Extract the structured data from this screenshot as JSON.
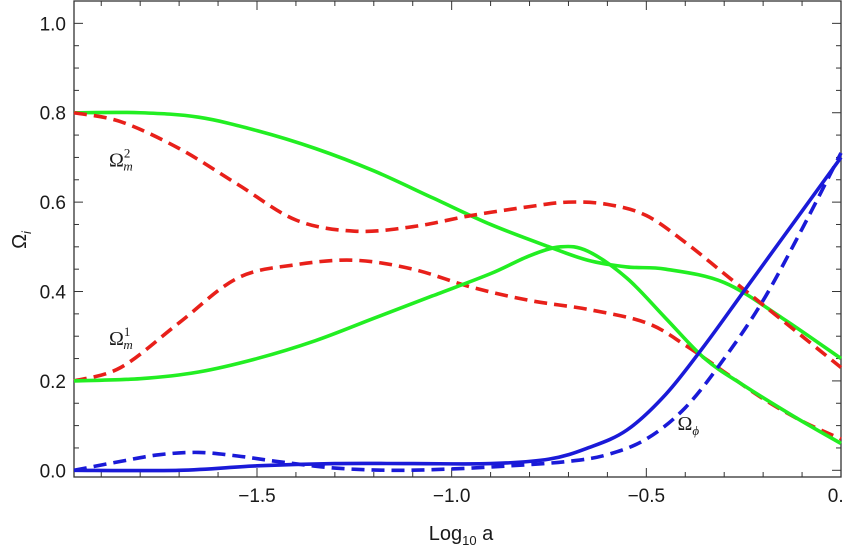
{
  "chart_data": {
    "type": "line",
    "xlabel": "Log",
    "xlabel_sub": "10",
    "xlabel_tail": " a",
    "ylabel": "Ω",
    "ylabel_sub": "i",
    "xlim": [
      -1.97,
      0.0
    ],
    "ylim": [
      -0.015,
      1.05
    ],
    "x_ticks": [
      -1.5,
      -1.0,
      -0.5,
      0.0
    ],
    "x_tick_labels": [
      "−1.5",
      "−1.0",
      "−0.5",
      "0.0"
    ],
    "y_ticks": [
      0.0,
      0.2,
      0.4,
      0.6,
      0.8,
      1.0
    ],
    "y_tick_labels": [
      "0.0",
      "0.2",
      "0.4",
      "0.6",
      "0.8",
      "1.0"
    ],
    "grid": false,
    "colors": {
      "green": "#22ee22",
      "red": "#e8201a",
      "blue": "#1a1ad8"
    },
    "series": [
      {
        "color": "green",
        "dash": false,
        "x": [
          -1.97,
          -1.8,
          -1.65,
          -1.5,
          -1.35,
          -1.2,
          -1.05,
          -0.9,
          -0.75,
          -0.65,
          -0.55,
          -0.45,
          -0.3,
          -0.15,
          0.0
        ],
        "y": [
          0.8,
          0.8,
          0.79,
          0.76,
          0.72,
          0.67,
          0.61,
          0.55,
          0.5,
          0.47,
          0.455,
          0.45,
          0.42,
          0.34,
          0.25
        ]
      },
      {
        "color": "red",
        "dash": true,
        "x": [
          -1.97,
          -1.85,
          -1.7,
          -1.55,
          -1.4,
          -1.25,
          -1.1,
          -0.95,
          -0.8,
          -0.7,
          -0.6,
          -0.5,
          -0.4,
          -0.3,
          -0.2,
          -0.1,
          0.0
        ],
        "y": [
          0.8,
          0.78,
          0.72,
          0.64,
          0.56,
          0.535,
          0.545,
          0.57,
          0.59,
          0.6,
          0.595,
          0.57,
          0.51,
          0.44,
          0.37,
          0.3,
          0.23
        ]
      },
      {
        "color": "red",
        "dash": true,
        "x": [
          -1.97,
          -1.85,
          -1.7,
          -1.55,
          -1.4,
          -1.25,
          -1.1,
          -0.95,
          -0.8,
          -0.65,
          -0.5,
          -0.4,
          -0.3,
          -0.2,
          -0.1,
          0.0
        ],
        "y": [
          0.2,
          0.23,
          0.33,
          0.43,
          0.46,
          0.47,
          0.45,
          0.41,
          0.38,
          0.36,
          0.33,
          0.28,
          0.22,
          0.16,
          0.11,
          0.07
        ]
      },
      {
        "color": "green",
        "dash": false,
        "x": [
          -1.97,
          -1.8,
          -1.65,
          -1.5,
          -1.35,
          -1.2,
          -1.05,
          -0.9,
          -0.8,
          -0.72,
          -0.65,
          -0.55,
          -0.45,
          -0.35,
          -0.25,
          -0.12,
          0.0
        ],
        "y": [
          0.2,
          0.205,
          0.22,
          0.25,
          0.29,
          0.34,
          0.39,
          0.44,
          0.48,
          0.5,
          0.49,
          0.43,
          0.34,
          0.25,
          0.19,
          0.12,
          0.06
        ]
      },
      {
        "color": "blue",
        "dash": false,
        "x": [
          -1.97,
          -1.7,
          -1.5,
          -1.3,
          -1.1,
          -0.9,
          -0.75,
          -0.65,
          -0.55,
          -0.45,
          -0.35,
          -0.25,
          -0.15,
          -0.05,
          0.0
        ],
        "y": [
          0.0,
          0.0,
          0.01,
          0.015,
          0.015,
          0.015,
          0.025,
          0.05,
          0.09,
          0.17,
          0.28,
          0.4,
          0.52,
          0.64,
          0.7
        ]
      },
      {
        "color": "blue",
        "dash": true,
        "x": [
          -1.97,
          -1.85,
          -1.75,
          -1.65,
          -1.55,
          -1.45,
          -1.3,
          -1.15,
          -1.0,
          -0.85,
          -0.7,
          -0.6,
          -0.5,
          -0.4,
          -0.3,
          -0.2,
          -0.1,
          0.0
        ],
        "y": [
          0.0,
          0.02,
          0.035,
          0.04,
          0.032,
          0.02,
          0.005,
          0.0,
          0.003,
          0.01,
          0.02,
          0.035,
          0.07,
          0.14,
          0.25,
          0.38,
          0.54,
          0.71
        ]
      }
    ],
    "annotations": [
      {
        "text": "Ω",
        "sup": "2",
        "sub": "m",
        "x": -1.88,
        "y": 0.68
      },
      {
        "text": "Ω",
        "sup": "1",
        "sub": "m",
        "x": -1.88,
        "y": 0.28
      },
      {
        "text": "Ω",
        "sup": "",
        "sub": "ϕ",
        "x": -0.42,
        "y": 0.09
      }
    ]
  }
}
